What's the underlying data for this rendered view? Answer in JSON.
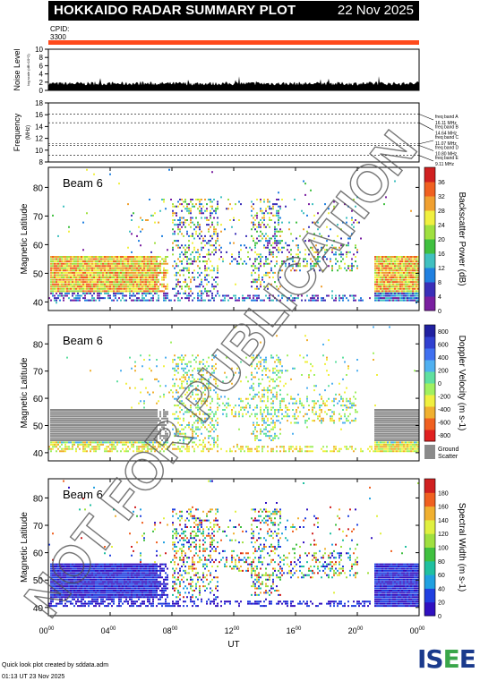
{
  "header": {
    "title": "HOKKAIDO RADAR SUMMARY PLOT",
    "date": "22 Nov 2025"
  },
  "cpid": {
    "label": "CPID:",
    "value": "3300"
  },
  "footer": {
    "line1": "Quick look plot created by sddata.adm",
    "line2": "01:13 UT 23 Nov 2025"
  },
  "logo": {
    "text": "ISEE"
  },
  "watermark": "NOT FOR PUBLICATION",
  "chart_data": [
    {
      "type": "area",
      "name": "noise",
      "ylabel": "Noise Level",
      "ysublabel": "log scale (dB×10^2)",
      "ylim": [
        0,
        10
      ],
      "yticks": [
        0,
        2,
        4,
        6,
        8,
        10
      ]
    },
    {
      "type": "line",
      "name": "frequency",
      "ylabel": "Frequency",
      "ysublabel": "(MHz)",
      "ylim": [
        8,
        18
      ],
      "yticks": [
        8,
        10,
        12,
        14,
        16,
        18
      ],
      "bands": [
        {
          "name": "freq band A",
          "value_label": "16.11 MHz",
          "freq": 16.11
        },
        {
          "name": "freq band B",
          "value_label": "14.64 MHz",
          "freq": 14.64
        },
        {
          "name": "freq band C",
          "value_label": "11.07 MHz",
          "freq": 11.07
        },
        {
          "name": "freq band D",
          "value_label": "10.80 MHz",
          "freq": 10.8
        },
        {
          "name": "freq band E",
          "value_label": "9.11 MHz",
          "freq": 9.11
        }
      ]
    },
    {
      "type": "heatmap",
      "name": "power",
      "beam_label": "Beam 6",
      "ylabel": "Magnetic Latitude",
      "ylim": [
        37,
        87
      ],
      "yticks": [
        40,
        50,
        60,
        70,
        80
      ],
      "colorbar_label": "Backscatter Power (dB)",
      "colorbar_ticks": [
        "0",
        "4",
        "8",
        "12",
        "16",
        "20",
        "24",
        "28",
        "32",
        "36"
      ]
    },
    {
      "type": "heatmap",
      "name": "velocity",
      "beam_label": "Beam 6",
      "ylabel": "Magnetic Latitude",
      "ylim": [
        37,
        87
      ],
      "yticks": [
        40,
        50,
        60,
        70,
        80
      ],
      "colorbar_label": "Doppler Velocity (m s-1)",
      "colorbar_ticks": [
        "800",
        "600",
        "400",
        "200",
        "0",
        "-200",
        "-400",
        "-600",
        "-800"
      ],
      "ground_scatter_label": [
        "Ground",
        "Scatter"
      ]
    },
    {
      "type": "heatmap",
      "name": "width",
      "beam_label": "Beam 6",
      "ylabel": "Magnetic Latitude",
      "ylim": [
        37,
        87
      ],
      "yticks": [
        40,
        50,
        60,
        70,
        80
      ],
      "colorbar_label": "Spectral Width (m s-1)",
      "colorbar_ticks": [
        "0",
        "20",
        "40",
        "60",
        "80",
        "100",
        "120",
        "140",
        "160",
        "180"
      ]
    }
  ],
  "xaxis": {
    "label": "UT",
    "ticks": [
      "00",
      "04",
      "08",
      "12",
      "16",
      "20",
      "00"
    ],
    "tick_suffix": "00",
    "xlim": [
      0,
      24
    ]
  }
}
